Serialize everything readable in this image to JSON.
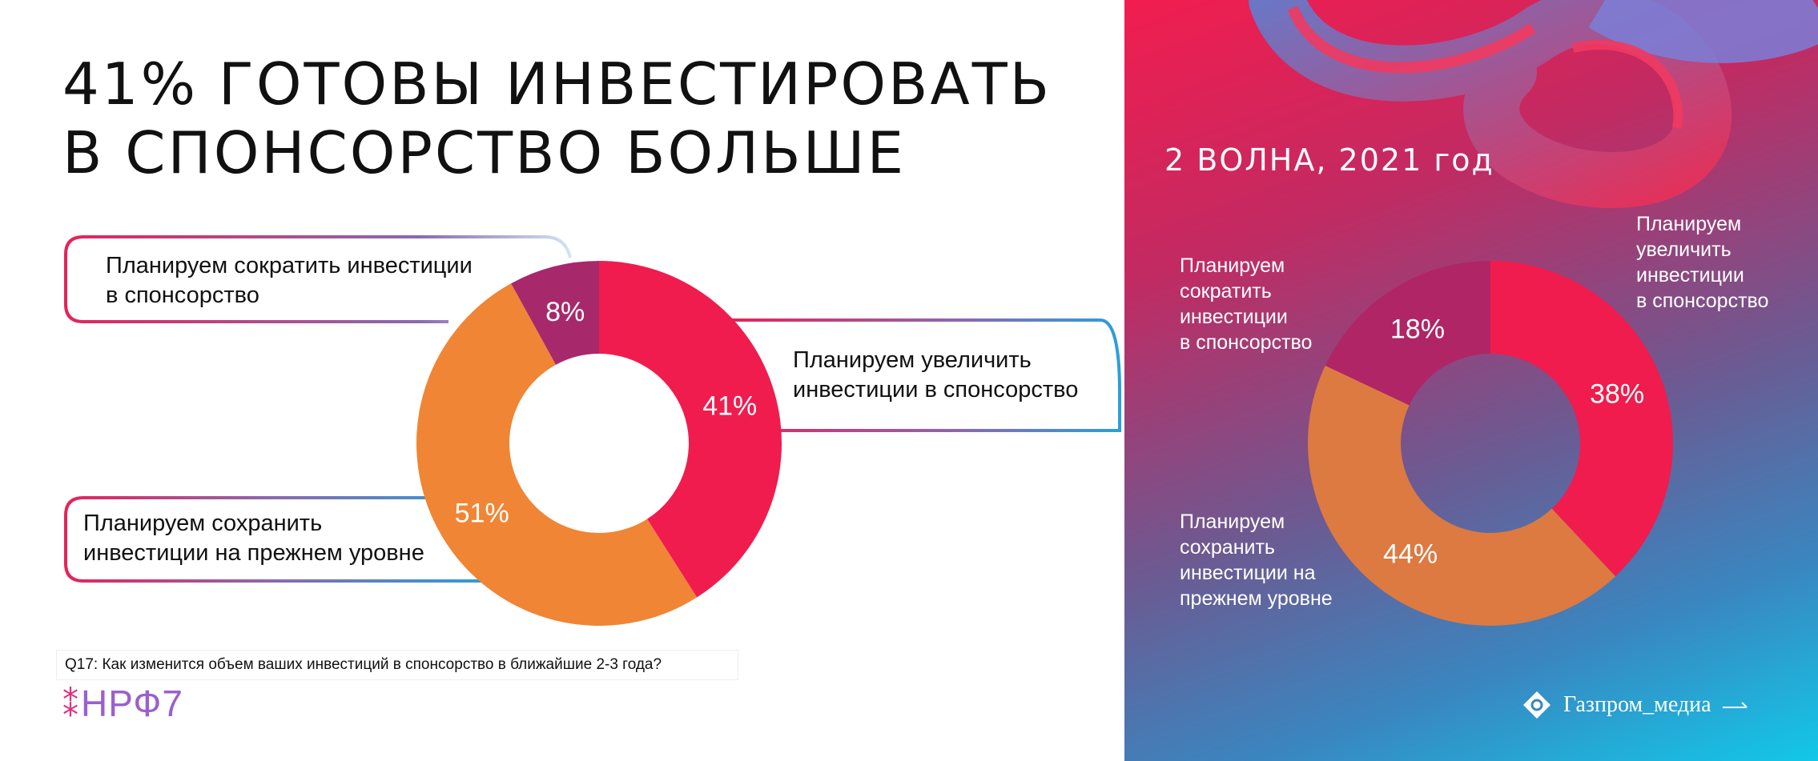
{
  "title_lines": [
    "41% ГОТОВЫ ИНВЕСТИРОВАТЬ",
    "В СПОНСОРСТВО БОЛЬШЕ"
  ],
  "question": "Q17: Как изменится объем ваших инвестиций в спонсорство в ближайшие 2-3 года?",
  "logo_nrf": {
    "mark": "⁑",
    "text": "НРФ7"
  },
  "logo_gpm": "Газпром_медиа",
  "colors": {
    "increase": "#f01c4e",
    "keep": "#f08535",
    "decrease": "#a8296b",
    "keep_right": "#dc7a42",
    "decrease_right": "#b02566"
  },
  "chart_data": [
    {
      "type": "pie",
      "title": "",
      "categories": [
        "Планируем увеличить инвестиции в спонсорство",
        "Планируем сохранить инвестиции на прежнем уровне",
        "Планируем сократить инвестиции в спонсорство"
      ],
      "values": [
        41,
        51,
        8
      ],
      "labels": [
        "41%",
        "51%",
        "8%"
      ],
      "callouts": {
        "increase": [
          "Планируем увеличить",
          "инвестиции в спонсорство"
        ],
        "keep": [
          "Планируем сохранить",
          "инвестиции на прежнем уровне"
        ],
        "decrease": [
          "Планируем сократить инвестиции",
          "в спонсорство"
        ]
      }
    },
    {
      "type": "pie",
      "title": "2 ВОЛНА, 2021 год",
      "categories": [
        "Планируем увеличить инвестиции в спонсорство",
        "Планируем сохранить инвестиции на прежнем уровне",
        "Планируем сократить инвестиции в спонсорство"
      ],
      "values": [
        38,
        44,
        18
      ],
      "labels": [
        "38%",
        "44%",
        "18%"
      ],
      "callouts": {
        "increase": [
          "Планируем",
          "увеличить",
          "инвестиции",
          "в спонсорство"
        ],
        "keep": [
          "Планируем",
          "сохранить",
          "инвестиции на",
          "прежнем уровне"
        ],
        "decrease": [
          "Планируем",
          "сократить",
          "инвестиции",
          "в спонсорство"
        ]
      }
    }
  ]
}
